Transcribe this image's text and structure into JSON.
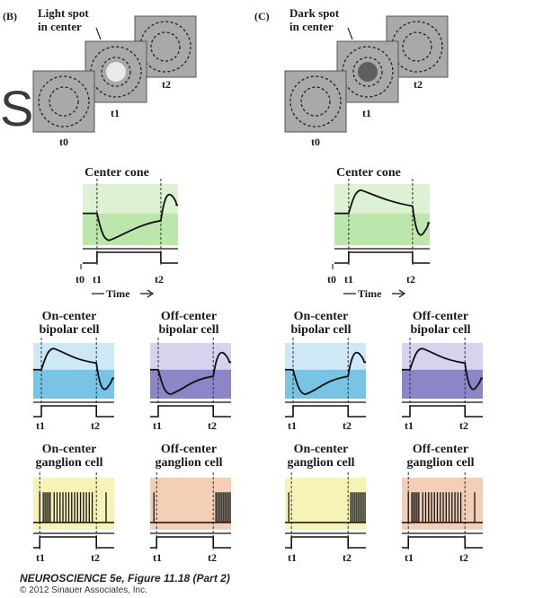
{
  "figure_caption": "NEUROSCIENCE 5e, Figure 11.18 (Part 2)",
  "copyright": "© 2012 Sinauer Associates, Inc.",
  "cropped_letter": "S",
  "colors": {
    "square_gray": "#a9a9a9",
    "light_spot": "#e9e9e9",
    "dark_spot": "#5e5e5e",
    "cone_light": "#dcf2d2",
    "cone_dark": "#bde6ad",
    "on_bipolar_light": "#cfe8f6",
    "on_bipolar_dark": "#78c4e4",
    "off_bipolar_light": "#d6d3ee",
    "off_bipolar_dark": "#8a86c8",
    "on_ganglion": "#f7f2b5",
    "off_ganglion": "#f3cfb8"
  },
  "panels": [
    {
      "id": "B",
      "label": "(B)",
      "spot_label_line1": "Light spot",
      "spot_label_line2": "in center",
      "spot_color": "light",
      "t0": "t0",
      "t1": "t1",
      "t2": "t2",
      "cone_title": "Center cone",
      "time_label": "Time",
      "on_bipolar_line1": "On-center",
      "on_bipolar_line2": "bipolar cell",
      "off_bipolar_line1": "Off-center",
      "off_bipolar_line2": "bipolar cell",
      "on_ganglion_line1": "On-center",
      "on_ganglion_line2": "ganglion cell",
      "off_ganglion_line1": "Off-center",
      "off_ganglion_line2": "ganglion cell",
      "cone_response": "hyperpolarize",
      "on_bipolar_response": "depolarize",
      "off_bipolar_response": "hyperpolarize",
      "on_ganglion_activity": "burst_during_stimulus",
      "off_ganglion_activity": "burst_after_stimulus"
    },
    {
      "id": "C",
      "label": "(C)",
      "spot_label_line1": "Dark spot",
      "spot_label_line2": "in center",
      "spot_color": "dark",
      "t0": "t0",
      "t1": "t1",
      "t2": "t2",
      "cone_title": "Center cone",
      "time_label": "Time",
      "on_bipolar_line1": "On-center",
      "on_bipolar_line2": "bipolar cell",
      "off_bipolar_line1": "Off-center",
      "off_bipolar_line2": "bipolar cell",
      "on_ganglion_line1": "On-center",
      "on_ganglion_line2": "ganglion cell",
      "off_ganglion_line1": "Off-center",
      "off_ganglion_line2": "ganglion cell",
      "cone_response": "depolarize",
      "on_bipolar_response": "hyperpolarize",
      "off_bipolar_response": "depolarize",
      "on_ganglion_activity": "burst_after_stimulus",
      "off_ganglion_activity": "burst_during_stimulus"
    }
  ]
}
